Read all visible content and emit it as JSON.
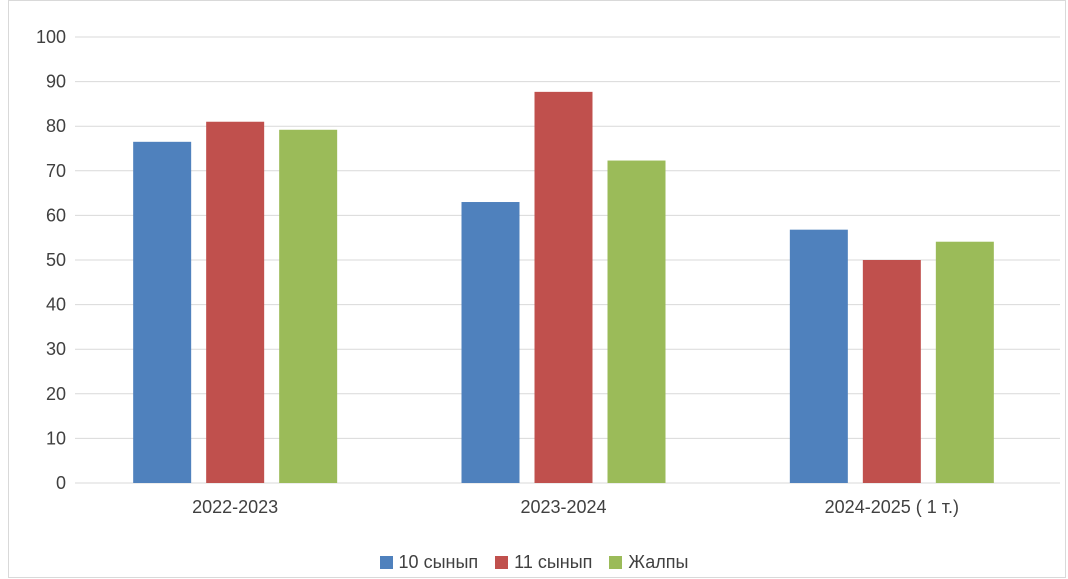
{
  "chart_data": {
    "type": "bar",
    "categories": [
      "2022-2023",
      "2023-2024",
      "2024-2025 ( 1 т.)"
    ],
    "series": [
      {
        "name": "10 сынып",
        "values": [
          76.5,
          63,
          56.8
        ],
        "color": "#4f81bd"
      },
      {
        "name": "11 сынып",
        "values": [
          81,
          87.7,
          50
        ],
        "color": "#c0504d"
      },
      {
        "name": "Жалпы",
        "values": [
          79.2,
          72.3,
          54.1
        ],
        "color": "#9bbb59"
      }
    ],
    "y_ticks": [
      "0",
      "10",
      "20",
      "30",
      "40",
      "50",
      "60",
      "70",
      "80",
      "90",
      "100"
    ],
    "ylim": [
      0,
      100
    ],
    "grid": true,
    "legend_position": "bottom"
  }
}
